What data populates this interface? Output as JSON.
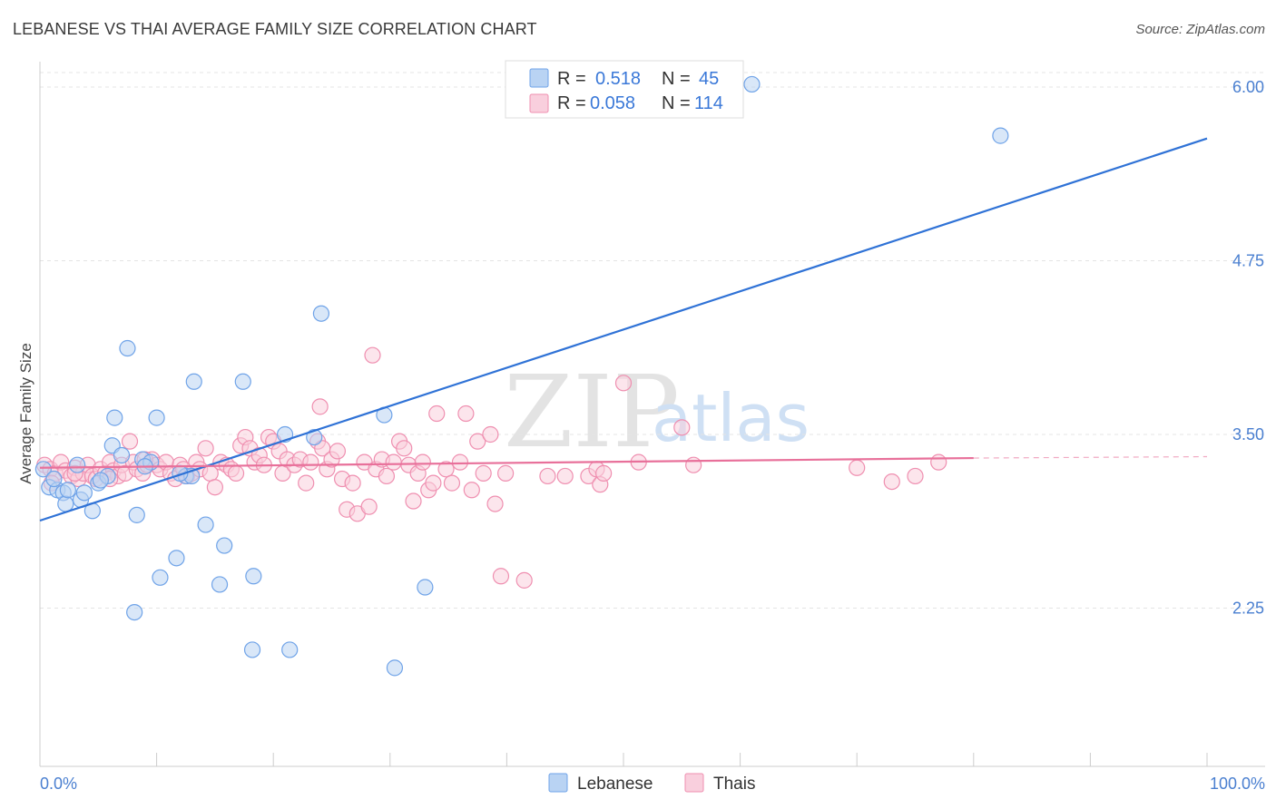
{
  "header": {
    "title": "LEBANESE VS THAI AVERAGE FAMILY SIZE CORRELATION CHART",
    "source": "Source: ZipAtlas.com"
  },
  "watermark": {
    "zip": "ZIP",
    "atlas": "atlas"
  },
  "legend": {
    "rows": [
      {
        "r_label": "R =",
        "r_value": "0.518",
        "n_label": "N =",
        "n_value": "45",
        "color": "#a9c9f0"
      },
      {
        "r_label": "R =",
        "r_value": "0.058",
        "n_label": "N =",
        "n_value": "114",
        "color": "#f5b7cb"
      }
    ]
  },
  "bottom_legend": {
    "items": [
      "Lebanese",
      "Thais"
    ]
  },
  "chart_data": {
    "type": "scatter",
    "title": "LEBANESE VS THAI AVERAGE FAMILY SIZE CORRELATION CHART",
    "xlabel": "",
    "ylabel": "Average Family Size",
    "xlim": [
      0,
      100
    ],
    "ylim": [
      1.0,
      6.15
    ],
    "x_tick_labels": [
      "0.0%",
      "100.0%"
    ],
    "y_ticks": [
      2.25,
      3.5,
      4.75,
      6.0
    ],
    "y_tick_labels": [
      "2.25",
      "3.50",
      "4.75",
      "6.00"
    ],
    "grid": true,
    "series": [
      {
        "name": "Lebanese",
        "color": "#6fa3e8",
        "fill": "#b9d3f3",
        "trend": {
          "x": [
            0,
            100
          ],
          "y": [
            2.88,
            5.63
          ]
        },
        "points": [
          [
            0.3,
            3.25
          ],
          [
            0.8,
            3.12
          ],
          [
            1.5,
            3.1
          ],
          [
            2.0,
            3.08
          ],
          [
            2.2,
            3.0
          ],
          [
            3.2,
            3.28
          ],
          [
            3.5,
            3.03
          ],
          [
            3.8,
            3.08
          ],
          [
            4.5,
            2.95
          ],
          [
            5.0,
            3.15
          ],
          [
            5.8,
            3.2
          ],
          [
            6.2,
            3.42
          ],
          [
            6.4,
            3.62
          ],
          [
            7.0,
            3.35
          ],
          [
            7.5,
            4.12
          ],
          [
            8.1,
            2.22
          ],
          [
            8.3,
            2.92
          ],
          [
            8.8,
            3.32
          ],
          [
            9.5,
            3.3
          ],
          [
            10.0,
            3.62
          ],
          [
            10.3,
            2.47
          ],
          [
            11.7,
            2.61
          ],
          [
            12.5,
            3.2
          ],
          [
            13.0,
            3.2
          ],
          [
            13.2,
            3.88
          ],
          [
            14.2,
            2.85
          ],
          [
            15.4,
            2.42
          ],
          [
            15.8,
            2.7
          ],
          [
            17.4,
            3.88
          ],
          [
            18.2,
            1.95
          ],
          [
            18.3,
            2.48
          ],
          [
            21.4,
            1.95
          ],
          [
            21.0,
            3.5
          ],
          [
            23.5,
            3.48
          ],
          [
            24.1,
            4.37
          ],
          [
            29.5,
            3.64
          ],
          [
            30.4,
            1.82
          ],
          [
            33.0,
            2.4
          ],
          [
            61.0,
            6.02
          ],
          [
            82.3,
            5.65
          ],
          [
            2.4,
            3.1
          ],
          [
            1.2,
            3.18
          ],
          [
            9.0,
            3.27
          ],
          [
            12.0,
            3.22
          ],
          [
            5.2,
            3.17
          ]
        ]
      },
      {
        "name": "Thais",
        "color": "#ef8fb0",
        "fill": "#f9cfdd",
        "trend": {
          "x": [
            0,
            80
          ],
          "y": [
            3.26,
            3.33
          ]
        },
        "trend_dashed": {
          "x": [
            80,
            100
          ],
          "y": [
            3.33,
            3.34
          ]
        },
        "points": [
          [
            0.4,
            3.28
          ],
          [
            0.9,
            3.25
          ],
          [
            1.3,
            3.22
          ],
          [
            1.8,
            3.3
          ],
          [
            2.2,
            3.24
          ],
          [
            2.7,
            3.2
          ],
          [
            3.0,
            3.26
          ],
          [
            3.3,
            3.18
          ],
          [
            3.7,
            3.22
          ],
          [
            4.1,
            3.28
          ],
          [
            4.5,
            3.2
          ],
          [
            4.8,
            3.18
          ],
          [
            5.2,
            3.25
          ],
          [
            5.6,
            3.22
          ],
          [
            6.0,
            3.3
          ],
          [
            6.3,
            3.24
          ],
          [
            6.7,
            3.2
          ],
          [
            7.0,
            3.28
          ],
          [
            7.3,
            3.22
          ],
          [
            7.7,
            3.45
          ],
          [
            8.0,
            3.3
          ],
          [
            8.3,
            3.25
          ],
          [
            8.8,
            3.22
          ],
          [
            9.2,
            3.28
          ],
          [
            9.6,
            3.32
          ],
          [
            10.0,
            3.28
          ],
          [
            10.3,
            3.25
          ],
          [
            10.8,
            3.3
          ],
          [
            11.2,
            3.22
          ],
          [
            11.6,
            3.18
          ],
          [
            12.0,
            3.28
          ],
          [
            12.3,
            3.25
          ],
          [
            12.6,
            3.2
          ],
          [
            13.0,
            3.22
          ],
          [
            13.4,
            3.3
          ],
          [
            13.7,
            3.25
          ],
          [
            14.2,
            3.4
          ],
          [
            14.6,
            3.22
          ],
          [
            15.0,
            3.12
          ],
          [
            15.5,
            3.3
          ],
          [
            16.0,
            3.28
          ],
          [
            16.4,
            3.25
          ],
          [
            16.8,
            3.22
          ],
          [
            17.2,
            3.42
          ],
          [
            17.6,
            3.48
          ],
          [
            18.0,
            3.4
          ],
          [
            18.4,
            3.3
          ],
          [
            18.8,
            3.35
          ],
          [
            19.2,
            3.28
          ],
          [
            19.6,
            3.48
          ],
          [
            20.0,
            3.45
          ],
          [
            20.5,
            3.38
          ],
          [
            20.8,
            3.22
          ],
          [
            21.2,
            3.32
          ],
          [
            21.8,
            3.28
          ],
          [
            22.3,
            3.32
          ],
          [
            22.8,
            3.15
          ],
          [
            23.2,
            3.3
          ],
          [
            23.8,
            3.45
          ],
          [
            24.2,
            3.4
          ],
          [
            24.6,
            3.25
          ],
          [
            24.0,
            3.7
          ],
          [
            25.0,
            3.32
          ],
          [
            25.5,
            3.38
          ],
          [
            25.9,
            3.18
          ],
          [
            26.3,
            2.96
          ],
          [
            26.8,
            3.15
          ],
          [
            27.2,
            2.93
          ],
          [
            27.8,
            3.3
          ],
          [
            28.2,
            2.98
          ],
          [
            28.8,
            3.25
          ],
          [
            29.3,
            3.32
          ],
          [
            29.7,
            3.2
          ],
          [
            28.5,
            4.07
          ],
          [
            30.3,
            3.3
          ],
          [
            30.8,
            3.45
          ],
          [
            31.2,
            3.4
          ],
          [
            31.6,
            3.28
          ],
          [
            32.0,
            3.02
          ],
          [
            32.4,
            3.22
          ],
          [
            32.8,
            3.3
          ],
          [
            33.3,
            3.1
          ],
          [
            33.7,
            3.15
          ],
          [
            34.0,
            3.65
          ],
          [
            34.8,
            3.25
          ],
          [
            35.3,
            3.15
          ],
          [
            36.0,
            3.3
          ],
          [
            36.5,
            3.65
          ],
          [
            37.0,
            3.1
          ],
          [
            37.5,
            3.45
          ],
          [
            38.0,
            3.22
          ],
          [
            38.6,
            3.5
          ],
          [
            39.0,
            3.0
          ],
          [
            39.5,
            2.48
          ],
          [
            39.9,
            3.22
          ],
          [
            41.5,
            2.45
          ],
          [
            43.5,
            3.2
          ],
          [
            45.0,
            3.2
          ],
          [
            47.0,
            3.2
          ],
          [
            47.7,
            3.25
          ],
          [
            48.0,
            3.14
          ],
          [
            48.3,
            3.22
          ],
          [
            51.3,
            3.3
          ],
          [
            50.0,
            3.87
          ],
          [
            55.0,
            3.55
          ],
          [
            56.0,
            3.28
          ],
          [
            70.0,
            3.26
          ],
          [
            73.0,
            3.16
          ],
          [
            75.0,
            3.2
          ],
          [
            77.0,
            3.3
          ],
          [
            1.0,
            3.15
          ],
          [
            3.0,
            3.22
          ],
          [
            6.0,
            3.18
          ],
          [
            9.0,
            3.32
          ]
        ]
      }
    ]
  }
}
